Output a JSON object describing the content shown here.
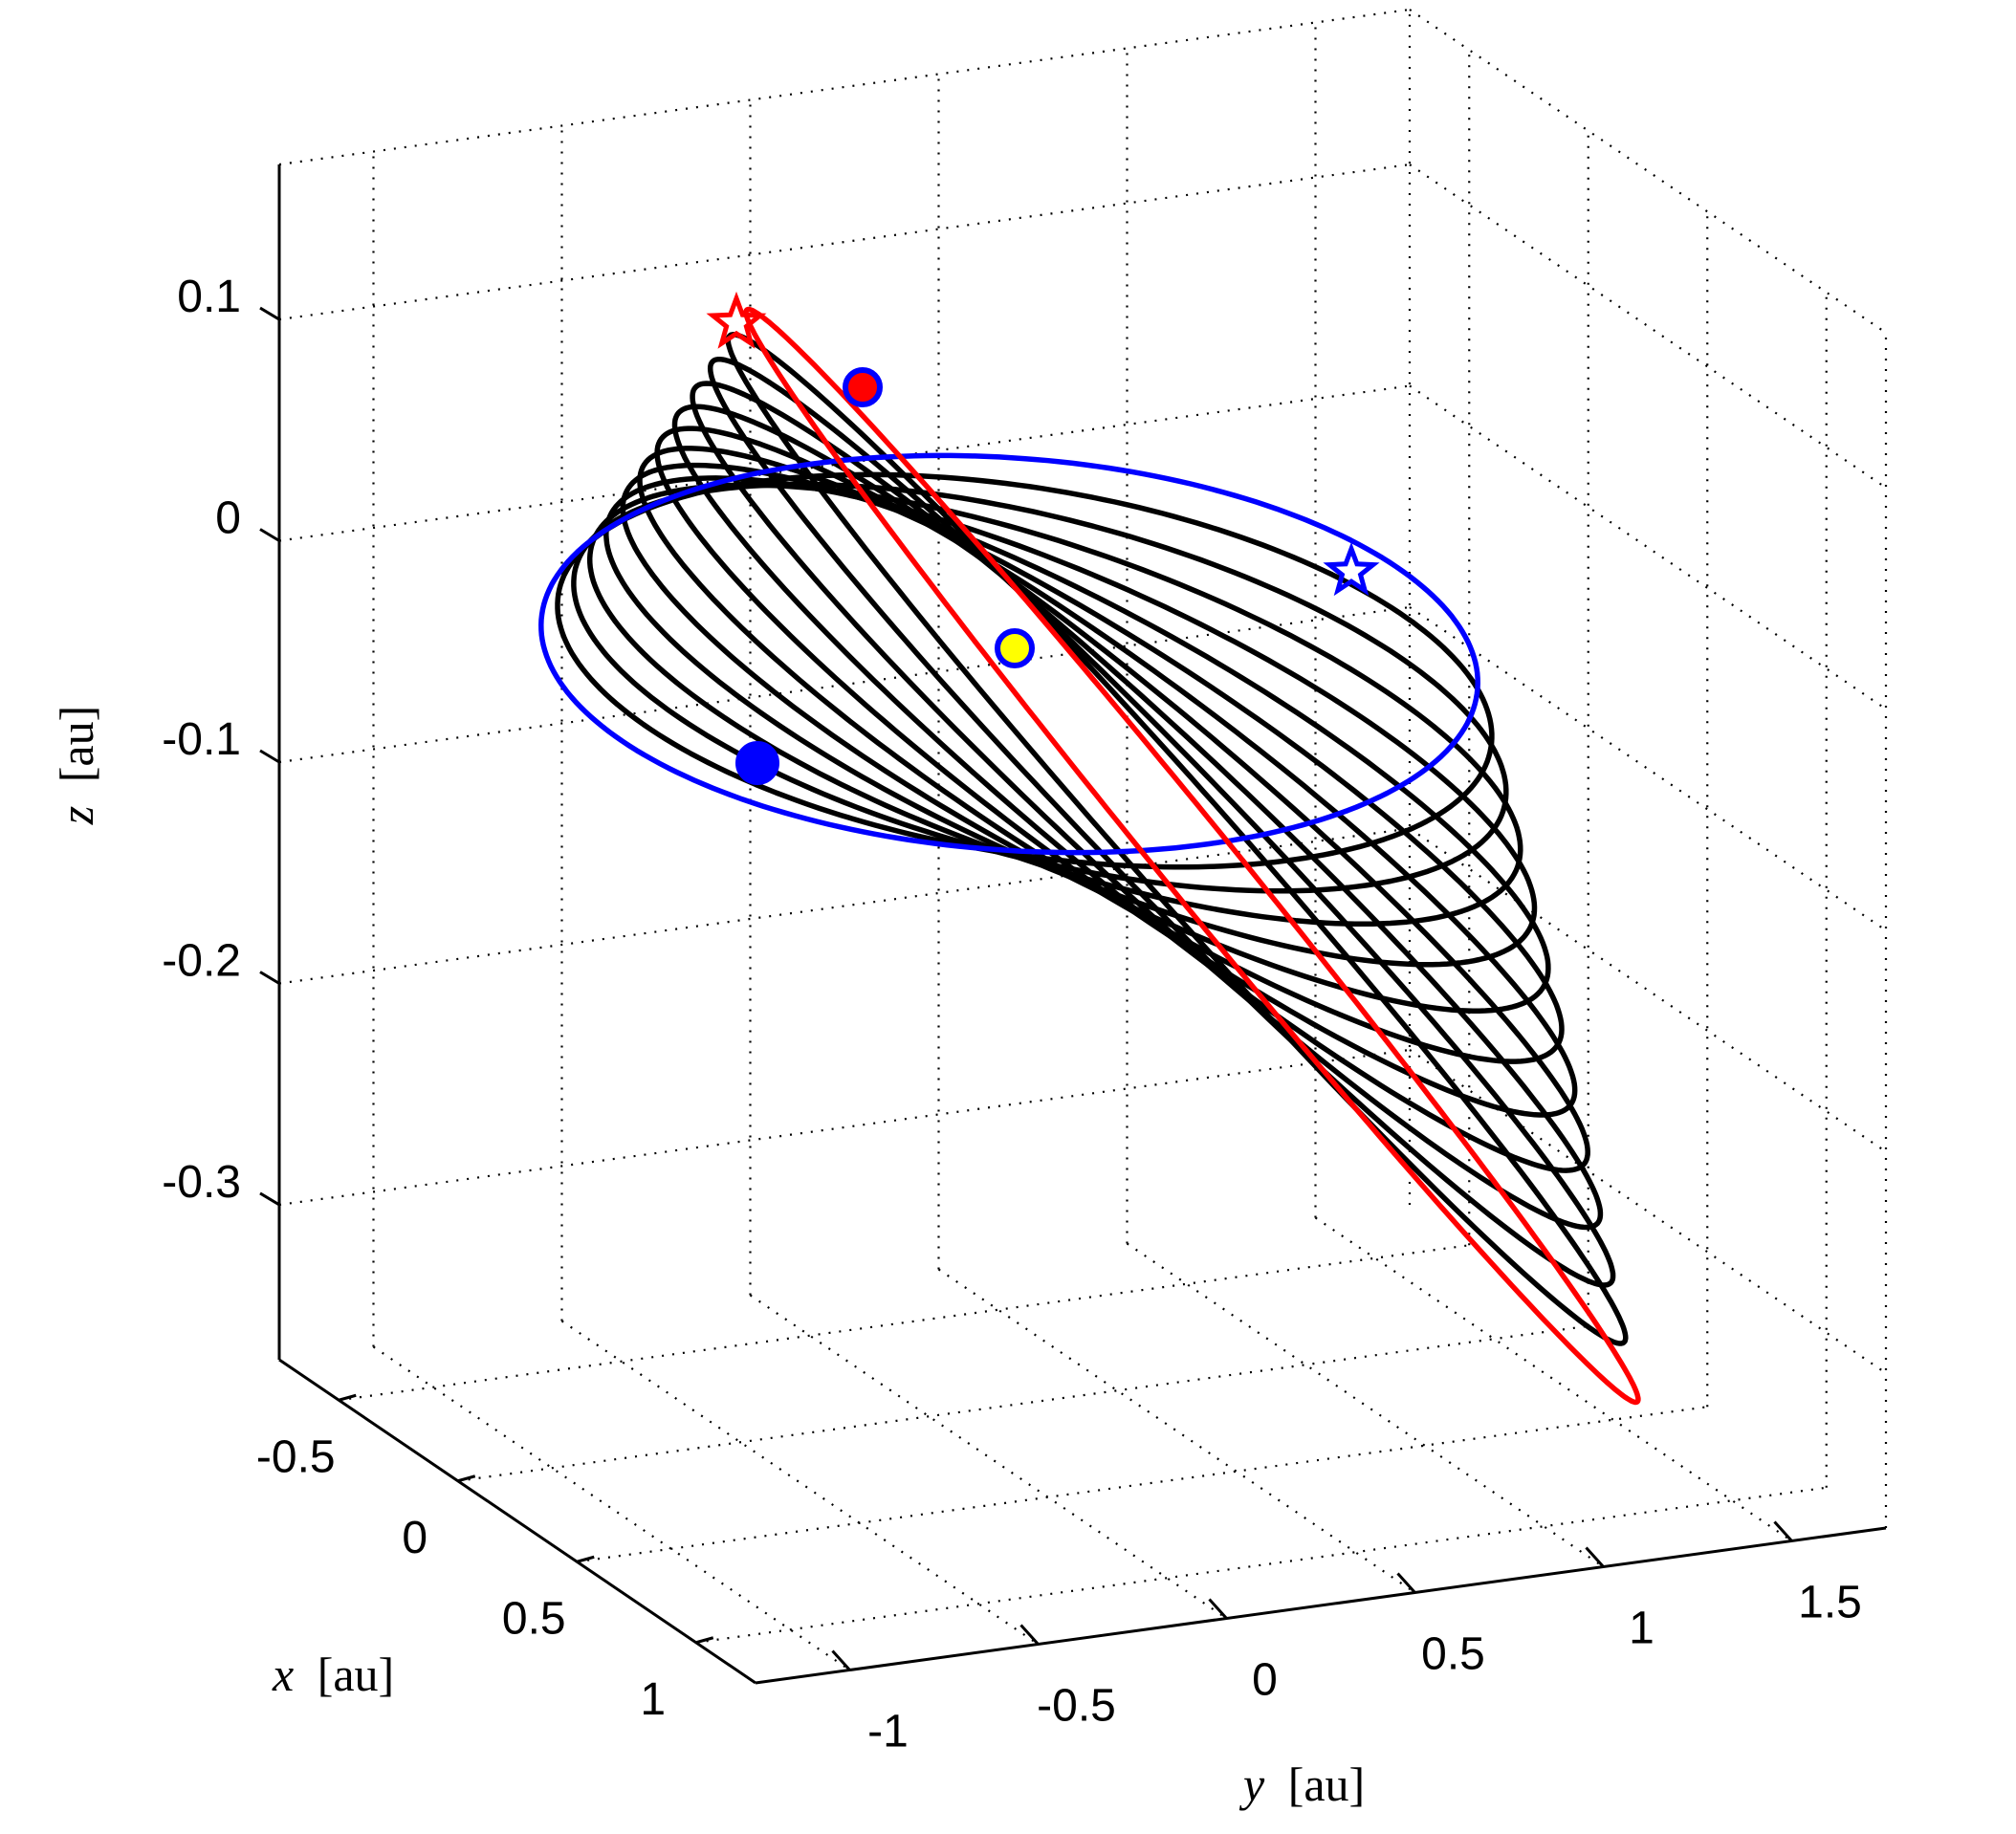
{
  "chart_data": {
    "type": "line",
    "title": "",
    "axes": {
      "x": {
        "label_var": "x",
        "label_unit": "[au]",
        "ticks": [
          "-0.5",
          "0",
          "0.5",
          "1"
        ],
        "range": [
          -0.75,
          1.25
        ]
      },
      "y": {
        "label_var": "y",
        "label_unit": "[au]",
        "ticks": [
          "-1",
          "-0.5",
          "0",
          "0.5",
          "1",
          "1.5"
        ],
        "range": [
          -1.25,
          1.75
        ]
      },
      "z": {
        "label_var": "z",
        "label_unit": "[au]",
        "ticks": [
          "0.1",
          "0",
          "-0.1",
          "-0.2",
          "-0.3"
        ],
        "range": [
          -0.37,
          0.17
        ]
      }
    },
    "grid": true,
    "legend": "none",
    "series": [
      {
        "color": "#0000ff",
        "role": "initial orbit",
        "shape": "ellipse"
      },
      {
        "color": "#000000",
        "role": "intermediate orbits",
        "count": 11
      },
      {
        "color": "#ff0000",
        "role": "final orbit",
        "shape": "inclined ellipse"
      }
    ],
    "markers": [
      {
        "shape": "star",
        "color": "#ff0000",
        "position": "start of red orbit, top"
      },
      {
        "shape": "circle",
        "color": "#ff0000",
        "edge": "#0000ff",
        "position": "on red orbit near top"
      },
      {
        "shape": "star",
        "color": "#0000ff",
        "position": "on blue orbit, right"
      },
      {
        "shape": "circle",
        "color": "#0000ff",
        "position": "on blue orbit, left"
      },
      {
        "shape": "circle",
        "color": "#ffff00",
        "edge": "#0000ff",
        "position": "center (Sun)"
      }
    ],
    "colors": {
      "blue": "#0000ff",
      "red": "#ff0000",
      "black": "#000000",
      "yellow": "#ffff00"
    }
  }
}
